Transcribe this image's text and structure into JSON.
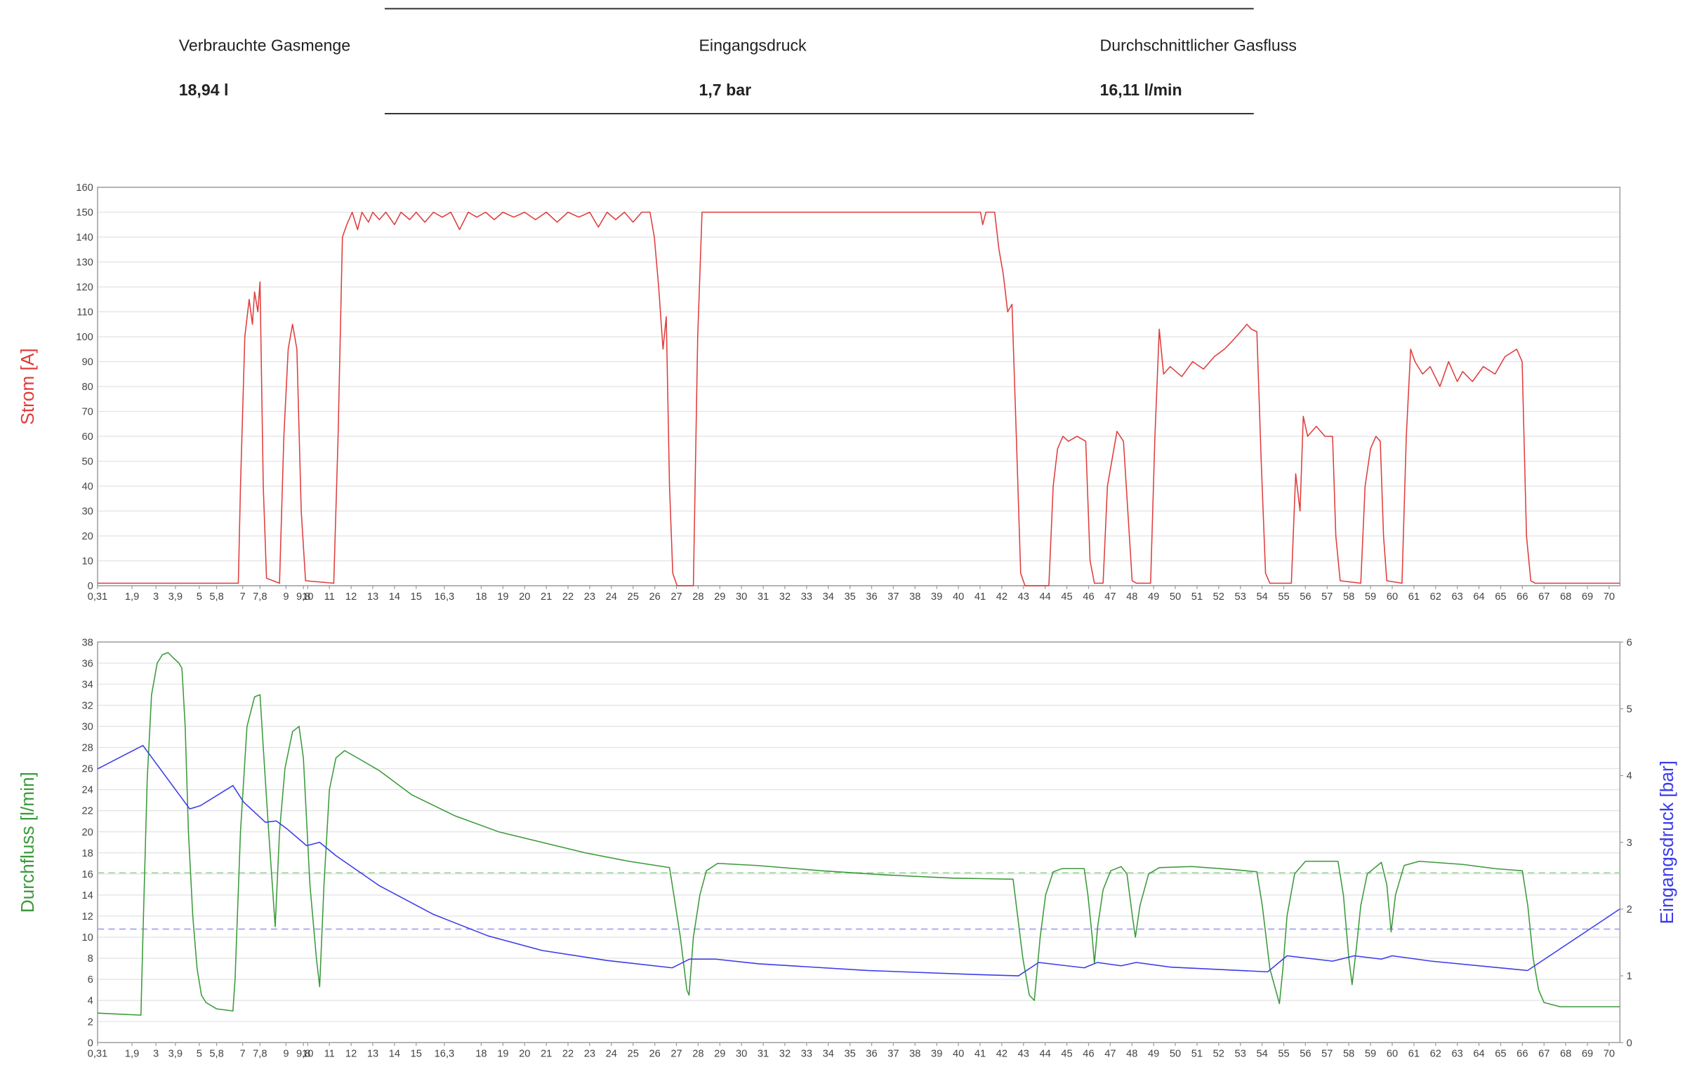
{
  "summary": {
    "items": [
      {
        "label": "Verbrauchte Gasmenge",
        "value": "18,94 l"
      },
      {
        "label": "Eingangsdruck",
        "value": "1,7 bar"
      },
      {
        "label": "Durchschnittlicher Gasfluss",
        "value": "16,11 l/min"
      }
    ]
  },
  "chart_data": [
    {
      "type": "line",
      "y_label": {
        "text": "Strom [A]",
        "color": "#e03c3c"
      },
      "xlim": [
        0.31,
        70.5
      ],
      "xticks": [
        {
          "value": 0.31,
          "label": "0,31"
        },
        {
          "value": 1.9,
          "label": "1,9"
        },
        3,
        {
          "value": 3.9,
          "label": "3,9"
        },
        5,
        {
          "value": 5.8,
          "label": "5,8"
        },
        7,
        {
          "value": 7.8,
          "label": "7,8"
        },
        9,
        {
          "value": 9.8,
          "label": "9,8"
        },
        10,
        11,
        12,
        13,
        14,
        15,
        {
          "value": 16.3,
          "label": "16,3"
        },
        18,
        19,
        20,
        21,
        22,
        23,
        24,
        25,
        26,
        27,
        28,
        29,
        30,
        31,
        32,
        33,
        34,
        35,
        36,
        37,
        38,
        39,
        40,
        41,
        42,
        43,
        44,
        45,
        46,
        47,
        48,
        49,
        50,
        51,
        52,
        53,
        54,
        55,
        56,
        57,
        58,
        59,
        60,
        61,
        62,
        63,
        64,
        65,
        66,
        67,
        68,
        69,
        70
      ],
      "ylim": [
        0,
        160
      ],
      "yticks": [
        0,
        10,
        20,
        30,
        40,
        50,
        60,
        70,
        80,
        90,
        100,
        110,
        120,
        130,
        140,
        150,
        160
      ],
      "grid": true,
      "series": [
        {
          "color": "#e03c3c",
          "x": [
            0.31,
            3.3,
            6.8,
            6.9,
            7.1,
            7.3,
            7.45,
            7.55,
            7.7,
            7.8,
            7.95,
            8.1,
            8.7,
            8.9,
            9.1,
            9.3,
            9.5,
            9.7,
            9.9,
            11.2,
            11.4,
            11.6,
            11.8,
            12.05,
            12.3,
            12.5,
            12.8,
            13.0,
            13.3,
            13.6,
            14.0,
            14.3,
            14.7,
            15.0,
            15.4,
            15.8,
            16.2,
            16.6,
            17.0,
            17.4,
            17.8,
            18.2,
            18.6,
            19.0,
            19.5,
            20.0,
            20.5,
            21.0,
            21.5,
            22.0,
            22.5,
            23.0,
            23.4,
            23.8,
            24.2,
            24.6,
            25.0,
            25.4,
            25.78,
            25.98,
            26.18,
            26.38,
            26.53,
            26.68,
            26.83,
            27.03,
            27.78,
            27.98,
            28.18,
            41.02,
            41.12,
            41.27,
            41.67,
            41.87,
            42.07,
            42.27,
            42.47,
            42.67,
            42.87,
            43.07,
            44.17,
            44.37,
            44.57,
            44.82,
            45.07,
            45.47,
            45.87,
            46.07,
            46.27,
            46.67,
            46.87,
            47.07,
            47.31,
            47.61,
            47.81,
            48.01,
            48.21,
            48.86,
            49.06,
            49.26,
            49.46,
            49.76,
            50.3,
            50.8,
            51.3,
            51.8,
            52.26,
            52.6,
            53.01,
            53.3,
            53.51,
            53.76,
            53.96,
            54.16,
            54.36,
            55.35,
            55.55,
            55.75,
            55.9,
            56.1,
            56.5,
            56.9,
            57.25,
            57.4,
            57.6,
            58.55,
            58.75,
            59.0,
            59.25,
            59.45,
            59.6,
            59.75,
            60.45,
            60.65,
            60.85,
            61.05,
            61.4,
            61.75,
            62.2,
            62.6,
            63.0,
            63.25,
            63.7,
            64.2,
            64.74,
            65.2,
            65.74,
            65.99,
            66.19,
            66.39,
            66.59,
            70.49
          ],
          "values": [
            1,
            1,
            1,
            40,
            100,
            115,
            105,
            118,
            110,
            122,
            40,
            3,
            1,
            60,
            95,
            105,
            95,
            30,
            2,
            1,
            60,
            140,
            145,
            150,
            143,
            150,
            146,
            150,
            147,
            150,
            145,
            150,
            147,
            150,
            146,
            150,
            148,
            150,
            143,
            150,
            148,
            150,
            147,
            150,
            148,
            150,
            147,
            150,
            146,
            150,
            148,
            150,
            144,
            150,
            147,
            150,
            146,
            150,
            150,
            140,
            120,
            95,
            108,
            40,
            5,
            0,
            0,
            100,
            150,
            150,
            145,
            150,
            150,
            135,
            125,
            110,
            113,
            60,
            5,
            0,
            0,
            40,
            55,
            60,
            58,
            60,
            58,
            10,
            1,
            1,
            40,
            50,
            62,
            58,
            30,
            2,
            1,
            1,
            60,
            103,
            85,
            88,
            84,
            90,
            87,
            92,
            95,
            98,
            102,
            105,
            103,
            102,
            50,
            5,
            1,
            1,
            45,
            30,
            68,
            60,
            64,
            60,
            60,
            20,
            2,
            1,
            40,
            55,
            60,
            58,
            20,
            2,
            1,
            60,
            95,
            90,
            85,
            88,
            80,
            90,
            82,
            86,
            82,
            88,
            85,
            92,
            95,
            90,
            20,
            2,
            1,
            1
          ]
        }
      ]
    },
    {
      "type": "line",
      "y_label": {
        "text": "Durchfluss [l/min]",
        "color": "#3a9a3a"
      },
      "y2_label": {
        "text": "Eingangsdruck [bar]",
        "color": "#3b3bea"
      },
      "xlim": [
        0.31,
        70.5
      ],
      "xticks": [
        {
          "value": 0.31,
          "label": "0,31"
        },
        {
          "value": 1.9,
          "label": "1,9"
        },
        3,
        {
          "value": 3.9,
          "label": "3,9"
        },
        5,
        {
          "value": 5.8,
          "label": "5,8"
        },
        7,
        {
          "value": 7.8,
          "label": "7,8"
        },
        9,
        {
          "value": 9.8,
          "label": "9,8"
        },
        10,
        11,
        12,
        13,
        14,
        15,
        {
          "value": 16.3,
          "label": "16,3"
        },
        18,
        19,
        20,
        21,
        22,
        23,
        24,
        25,
        26,
        27,
        28,
        29,
        30,
        31,
        32,
        33,
        34,
        35,
        36,
        37,
        38,
        39,
        40,
        41,
        42,
        43,
        44,
        45,
        46,
        47,
        48,
        49,
        50,
        51,
        52,
        53,
        54,
        55,
        56,
        57,
        58,
        59,
        60,
        61,
        62,
        63,
        64,
        65,
        66,
        67,
        68,
        69,
        70
      ],
      "ylim": [
        0,
        38
      ],
      "yticks": [
        0,
        2,
        4,
        6,
        8,
        10,
        12,
        14,
        16,
        18,
        20,
        22,
        24,
        26,
        28,
        30,
        32,
        34,
        36,
        38
      ],
      "y2lim": [
        0,
        6
      ],
      "y2ticks": [
        0,
        1,
        2,
        3,
        4,
        5,
        6
      ],
      "grid": true,
      "reference_lines": [
        {
          "value": 16.11,
          "color": "#a8d8a8"
        },
        {
          "value": 1.7,
          "axis": "y2",
          "color": "#a8a8f0"
        }
      ],
      "series": [
        {
          "color": "#3a9a3a",
          "x": [
            0.31,
            2.31,
            2.4,
            2.6,
            2.8,
            3.06,
            3.3,
            3.56,
            3.8,
            4.06,
            4.2,
            4.35,
            4.5,
            4.7,
            4.9,
            5.1,
            5.31,
            5.8,
            6.55,
            6.65,
            6.9,
            7.2,
            7.55,
            7.8,
            7.95,
            8.2,
            8.4,
            8.5,
            8.7,
            8.95,
            9.3,
            9.6,
            9.8,
            10.1,
            10.4,
            10.55,
            10.75,
            11.0,
            11.3,
            11.7,
            12.3,
            13.3,
            14.8,
            16.8,
            18.8,
            20.8,
            22.8,
            24.8,
            26.68,
            26.88,
            27.18,
            27.48,
            27.58,
            27.78,
            28.08,
            28.38,
            28.9,
            30.7,
            33.7,
            36.7,
            39.77,
            42.52,
            42.67,
            42.97,
            43.27,
            43.5,
            43.77,
            44.02,
            44.37,
            44.77,
            45.8,
            45.97,
            46.17,
            46.27,
            46.42,
            46.67,
            47.02,
            47.5,
            47.77,
            48.02,
            48.16,
            48.37,
            48.77,
            49.26,
            50.76,
            52.76,
            53.76,
            54.01,
            54.36,
            54.8,
            54.96,
            55.15,
            55.5,
            56.0,
            57.5,
            57.75,
            58.0,
            58.15,
            58.35,
            58.55,
            58.85,
            59.5,
            59.75,
            59.95,
            60.15,
            60.55,
            61.25,
            63.25,
            64.75,
            66.0,
            66.25,
            66.5,
            66.75,
            67.0,
            67.74,
            70.49
          ],
          "values": [
            2.8,
            2.6,
            10,
            25,
            33,
            36,
            36.8,
            37,
            36.5,
            36,
            35.5,
            30,
            20,
            12,
            7,
            4.5,
            3.8,
            3.2,
            3.0,
            6,
            20,
            30,
            32.8,
            33,
            28,
            20,
            14,
            11,
            20,
            26,
            29.5,
            30,
            27,
            15,
            8,
            5.3,
            15,
            24,
            27,
            27.7,
            27,
            25.8,
            23.5,
            21.5,
            20,
            19,
            18,
            17.2,
            16.6,
            14,
            10,
            5,
            4.5,
            10,
            14,
            16.3,
            17,
            16.8,
            16.3,
            15.9,
            15.6,
            15.5,
            13,
            8,
            4.5,
            4,
            10,
            14,
            16.2,
            16.5,
            16.5,
            14,
            10,
            7.5,
            11,
            14.5,
            16.3,
            16.7,
            16,
            12,
            10,
            13,
            16,
            16.6,
            16.7,
            16.4,
            16.2,
            13,
            7,
            3.7,
            7,
            12,
            16,
            17.2,
            17.2,
            14,
            8,
            5.5,
            9,
            13,
            16,
            17.1,
            15,
            10.5,
            14,
            16.8,
            17.2,
            16.9,
            16.5,
            16.3,
            13,
            8,
            5,
            3.8,
            3.4,
            3.4
          ]
        },
        {
          "color": "#3b3bea",
          "axis": "y2",
          "x": [
            0.31,
            2.4,
            4.56,
            5.06,
            6.55,
            7.05,
            8.05,
            8.55,
            9.05,
            9.95,
            10.55,
            11.3,
            13.3,
            15.8,
            18.3,
            20.8,
            23.8,
            26.8,
            27.6,
            28.8,
            30.8,
            35.8,
            40.77,
            42.77,
            43.7,
            45.8,
            46.4,
            47.5,
            48.2,
            49.8,
            54.26,
            55.15,
            57.25,
            58.25,
            59.5,
            60,
            61.8,
            66.24,
            70.49
          ],
          "values": [
            4.1,
            4.45,
            3.5,
            3.55,
            3.85,
            3.6,
            3.3,
            3.32,
            3.2,
            2.95,
            3.0,
            2.8,
            2.35,
            1.92,
            1.6,
            1.38,
            1.23,
            1.12,
            1.25,
            1.25,
            1.18,
            1.08,
            1.02,
            1.0,
            1.2,
            1.12,
            1.2,
            1.15,
            1.2,
            1.13,
            1.06,
            1.3,
            1.22,
            1.3,
            1.25,
            1.3,
            1.22,
            1.08,
            2.0
          ]
        }
      ]
    }
  ]
}
